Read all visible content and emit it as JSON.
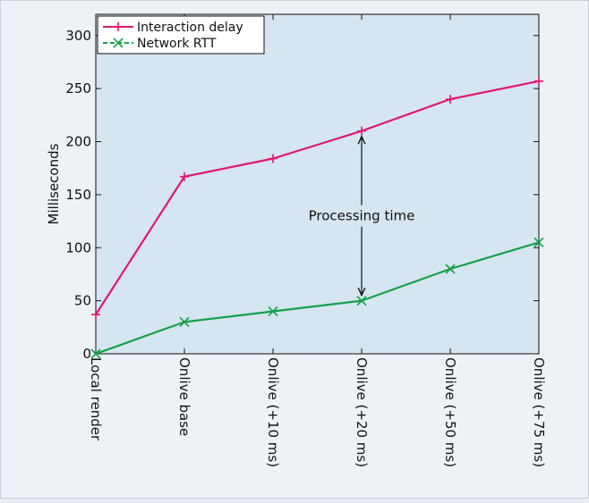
{
  "chart_data": {
    "type": "line",
    "categories": [
      "Local render",
      "Onlive base",
      "Onlive (+10 ms)",
      "Onlive (+20 ms)",
      "Onlive (+50 ms)",
      "Onlive (+75 ms)"
    ],
    "series": [
      {
        "name": "Interaction delay",
        "values": [
          37,
          167,
          184,
          210,
          240,
          257
        ],
        "color": "#e0176f",
        "marker": "plus"
      },
      {
        "name": "Network RTT",
        "values": [
          0,
          30,
          40,
          50,
          80,
          105
        ],
        "color": "#16a14b",
        "marker": "x"
      }
    ],
    "ylabel": "Milliseconds",
    "ylim": [
      0,
      320
    ],
    "yticks": [
      0,
      50,
      100,
      150,
      200,
      250,
      300
    ],
    "legend": "top-left",
    "annotation": {
      "text": "Processing time",
      "category": "Onlive (+20 ms)",
      "arrow_from": 210,
      "arrow_to": 50
    },
    "plot_background": "#d5e5f1"
  }
}
